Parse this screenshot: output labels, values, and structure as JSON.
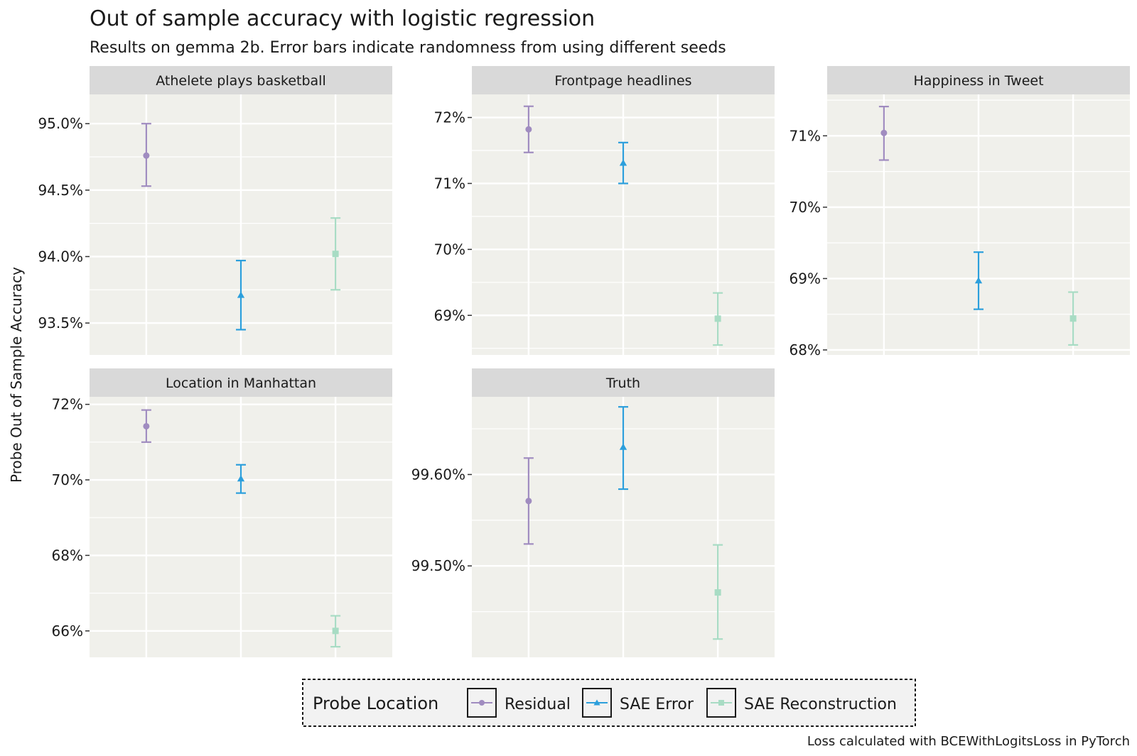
{
  "chart_data": {
    "type": "scatter",
    "title": "Out of sample accuracy with logistic regression",
    "subtitle": "Results on gemma 2b. Error bars indicate randomness from using different seeds",
    "ylabel": "Probe Out of Sample Accuracy",
    "caption": "Loss calculated with BCEWithLogitsLoss in PyTorch",
    "legend": {
      "title": "Probe Location",
      "position": "bottom",
      "entries": [
        {
          "name": "Residual",
          "color": "#a08cc0",
          "shape": "circle"
        },
        {
          "name": "SAE Error",
          "color": "#2c9fdc",
          "shape": "triangle"
        },
        {
          "name": "SAE Reconstruction",
          "color": "#a8dcc4",
          "shape": "square"
        }
      ]
    },
    "categories": [
      "Residual",
      "SAE Error",
      "SAE Reconstruction"
    ],
    "panels": [
      {
        "name": "Athelete plays basketball",
        "ylim": [
          93.26,
          95.22
        ],
        "yticks": [
          93.5,
          94.0,
          94.5,
          95.0
        ],
        "tick_labels": [
          "93.5%",
          "94.0%",
          "94.5%",
          "95.0%"
        ],
        "points": [
          {
            "series": "Residual",
            "y": 94.76,
            "low": 94.53,
            "high": 95.0
          },
          {
            "series": "SAE Error",
            "y": 93.71,
            "low": 93.45,
            "high": 93.97
          },
          {
            "series": "SAE Reconstruction",
            "y": 94.02,
            "low": 93.75,
            "high": 94.29
          }
        ]
      },
      {
        "name": "Frontpage headlines",
        "ylim": [
          68.4,
          72.35
        ],
        "yticks": [
          69,
          70,
          71,
          72
        ],
        "tick_labels": [
          "69%",
          "70%",
          "71%",
          "72%"
        ],
        "points": [
          {
            "series": "Residual",
            "y": 71.82,
            "low": 71.47,
            "high": 72.17
          },
          {
            "series": "SAE Error",
            "y": 71.31,
            "low": 71.0,
            "high": 71.62
          },
          {
            "series": "SAE Reconstruction",
            "y": 68.95,
            "low": 68.55,
            "high": 69.34
          }
        ]
      },
      {
        "name": "Happiness in Tweet",
        "ylim": [
          67.93,
          71.58
        ],
        "yticks": [
          68,
          69,
          70,
          71
        ],
        "tick_labels": [
          "68%",
          "69%",
          "70%",
          "71%"
        ],
        "points": [
          {
            "series": "Residual",
            "y": 71.04,
            "low": 70.66,
            "high": 71.41
          },
          {
            "series": "SAE Error",
            "y": 68.97,
            "low": 68.57,
            "high": 69.37
          },
          {
            "series": "SAE Reconstruction",
            "y": 68.44,
            "low": 68.07,
            "high": 68.81
          }
        ]
      },
      {
        "name": "Location in Manhattan",
        "ylim": [
          65.3,
          72.2
        ],
        "yticks": [
          66,
          68,
          70,
          72
        ],
        "tick_labels": [
          "66%",
          "68%",
          "70%",
          "72%"
        ],
        "points": [
          {
            "series": "Residual",
            "y": 71.42,
            "low": 71.0,
            "high": 71.85
          },
          {
            "series": "SAE Error",
            "y": 70.03,
            "low": 69.65,
            "high": 70.4
          },
          {
            "series": "SAE Reconstruction",
            "y": 66.0,
            "low": 65.58,
            "high": 66.4
          }
        ]
      },
      {
        "name": "Truth",
        "ylim": [
          99.4,
          99.685
        ],
        "yticks": [
          99.5,
          99.6
        ],
        "tick_labels": [
          "99.50%",
          "99.60%"
        ],
        "points": [
          {
            "series": "Residual",
            "y": 99.571,
            "low": 99.524,
            "high": 99.618
          },
          {
            "series": "SAE Error",
            "y": 99.63,
            "low": 99.584,
            "high": 99.674
          },
          {
            "series": "SAE Reconstruction",
            "y": 99.471,
            "low": 99.42,
            "high": 99.523
          }
        ]
      }
    ]
  }
}
